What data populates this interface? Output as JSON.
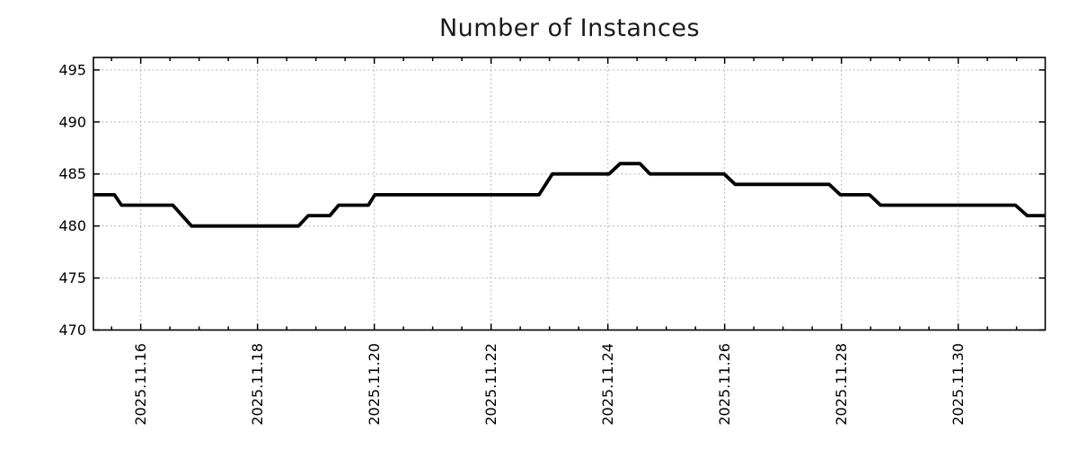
{
  "chart_data": {
    "type": "line",
    "title": "Number of Instances",
    "x_axis": {
      "unit": "date",
      "note": "x values are fractional day-of-month, November 2025 (31.0 = Dec 1)",
      "lim_days": [
        15.19,
        31.49
      ],
      "major_tick_days": [
        16,
        18,
        20,
        22,
        24,
        26,
        28,
        30
      ],
      "major_tick_labels": [
        "2025.11.16",
        "2025.11.18",
        "2025.11.20",
        "2025.11.22",
        "2025.11.24",
        "2025.11.26",
        "2025.11.28",
        "2025.11.30"
      ],
      "minor_tick_step_days": 0.5
    },
    "y_axis": {
      "lim": [
        470,
        496.2
      ],
      "ticks": [
        470,
        475,
        480,
        485,
        490,
        495
      ],
      "tick_labels": [
        "470",
        "475",
        "480",
        "485",
        "490",
        "495"
      ]
    },
    "grid": {
      "style": "dotted",
      "color": "#a6a6a6",
      "major_only": true
    },
    "legend": "none",
    "series": [
      {
        "name": "instances",
        "color": "#000000",
        "line_width": 3.8,
        "points_day_value": [
          [
            15.19,
            483
          ],
          [
            15.55,
            483
          ],
          [
            15.67,
            482
          ],
          [
            16.55,
            482
          ],
          [
            16.87,
            480
          ],
          [
            18.7,
            480
          ],
          [
            18.87,
            481
          ],
          [
            19.24,
            481
          ],
          [
            19.39,
            482
          ],
          [
            19.9,
            482
          ],
          [
            20.01,
            483
          ],
          [
            22.82,
            483
          ],
          [
            23.05,
            485
          ],
          [
            24.02,
            485
          ],
          [
            24.21,
            486
          ],
          [
            24.55,
            486
          ],
          [
            24.72,
            485
          ],
          [
            25.99,
            485
          ],
          [
            26.18,
            484
          ],
          [
            27.79,
            484
          ],
          [
            27.98,
            483
          ],
          [
            28.48,
            483
          ],
          [
            28.67,
            482
          ],
          [
            30.98,
            482
          ],
          [
            31.18,
            481
          ],
          [
            31.49,
            481
          ]
        ]
      }
    ],
    "frame_color": "#000000",
    "text_color": "#000000",
    "background_color": "#ffffff"
  }
}
